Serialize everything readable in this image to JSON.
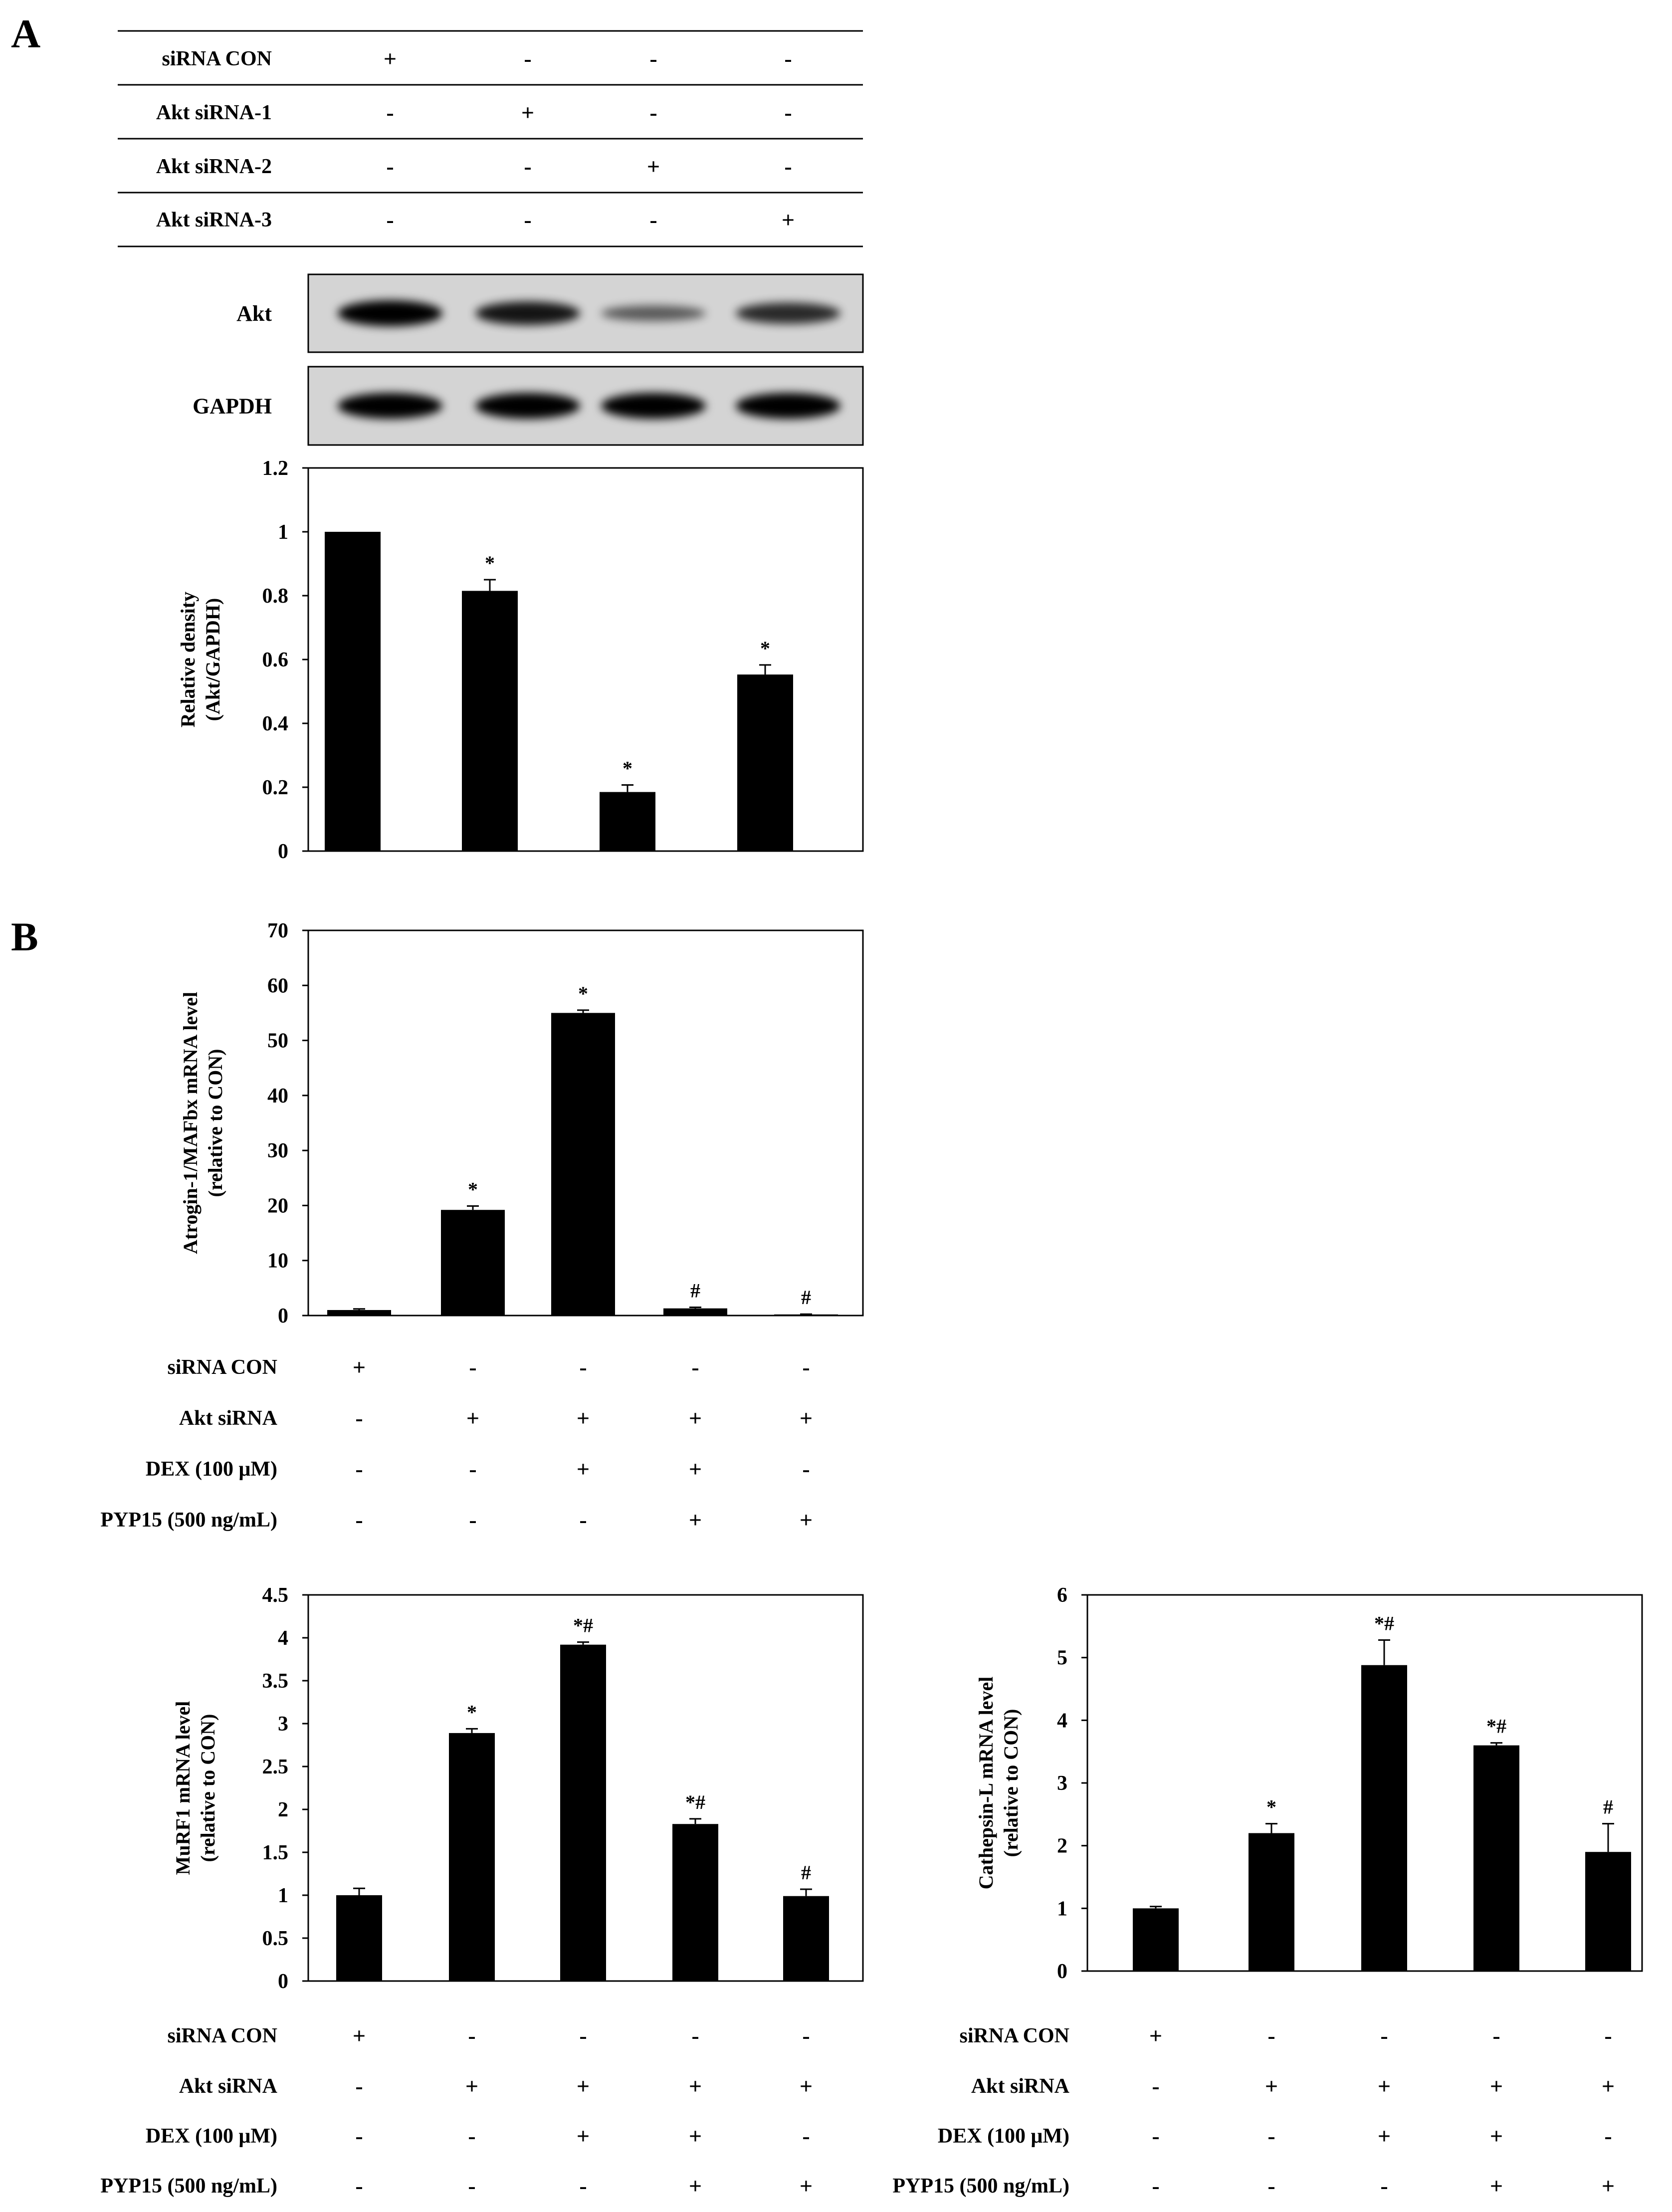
{
  "panels": [
    {
      "id": "A",
      "letter": "A"
    },
    {
      "id": "B",
      "letter": "B"
    }
  ],
  "panel_a_conditions": {
    "rows": [
      "siRNA CON",
      "Akt siRNA-1",
      "Akt siRNA-2",
      "Akt siRNA-3"
    ],
    "signs": [
      [
        "+",
        "-",
        "-",
        "-"
      ],
      [
        "-",
        "+",
        "-",
        "-"
      ],
      [
        "-",
        "-",
        "+",
        "-"
      ],
      [
        "-",
        "-",
        "-",
        "+"
      ]
    ]
  },
  "blots": [
    {
      "label": "Akt",
      "band_intensity": [
        1.0,
        0.85,
        0.35,
        0.7
      ]
    },
    {
      "label": "GAPDH",
      "band_intensity": [
        1.0,
        1.0,
        1.0,
        1.0
      ]
    }
  ],
  "panel_b_conditions": {
    "rows": [
      "siRNA CON",
      "Akt siRNA",
      "DEX (100 μM)",
      "PYP15 (500 ng/mL)"
    ],
    "signs": [
      [
        "+",
        "-",
        "-",
        "-",
        "-"
      ],
      [
        "-",
        "+",
        "+",
        "+",
        "+"
      ],
      [
        "-",
        "-",
        "+",
        "+",
        "-"
      ],
      [
        "-",
        "-",
        "-",
        "+",
        "+"
      ]
    ]
  },
  "chart_data": [
    {
      "id": "akt-density",
      "type": "bar",
      "ylabel": [
        "Relative density",
        "(Akt/GAPDH)"
      ],
      "ylim": [
        0,
        1.2
      ],
      "yticks": [
        0,
        0.2,
        0.4,
        0.6,
        0.8,
        1,
        1.2
      ],
      "ytick_labels": [
        "0",
        "0.2",
        "0.4",
        "0.6",
        "0.8",
        "1",
        "1.2"
      ],
      "values": [
        1.0,
        0.815,
        0.185,
        0.553
      ],
      "errors": [
        0,
        0.035,
        0.022,
        0.03
      ],
      "sig": [
        "",
        "*",
        "*",
        "*"
      ]
    },
    {
      "id": "atrogin",
      "type": "bar",
      "ylabel": [
        "Atrogin-1/MAFbx mRNA level",
        "(relative to CON)"
      ],
      "ylim": [
        0,
        70
      ],
      "yticks": [
        0,
        10,
        20,
        30,
        40,
        50,
        60,
        70
      ],
      "ytick_labels": [
        "0",
        "10",
        "20",
        "30",
        "40",
        "50",
        "60",
        "70"
      ],
      "values": [
        1.0,
        19.2,
        55.0,
        1.3,
        0.2
      ],
      "errors": [
        0.2,
        0.7,
        0.5,
        0.2,
        0.05
      ],
      "sig": [
        "",
        "*",
        "*",
        "#",
        "#"
      ]
    },
    {
      "id": "murf1",
      "type": "bar",
      "ylabel": [
        "MuRF1 mRNA level",
        "(relative to CON)"
      ],
      "ylim": [
        0,
        4.5
      ],
      "yticks": [
        0,
        0.5,
        1,
        1.5,
        2,
        2.5,
        3,
        3.5,
        4,
        4.5
      ],
      "ytick_labels": [
        "0",
        "0.5",
        "1",
        "1.5",
        "2",
        "2.5",
        "3",
        "3.5",
        "4",
        "4.5"
      ],
      "values": [
        1.0,
        2.89,
        3.92,
        1.83,
        0.99
      ],
      "errors": [
        0.08,
        0.05,
        0.03,
        0.06,
        0.08
      ],
      "sig": [
        "",
        "*",
        "*#",
        "*#",
        "#"
      ]
    },
    {
      "id": "cathepsin",
      "type": "bar",
      "ylabel": [
        "Cathepsin-L mRNA level",
        "(relative to CON)"
      ],
      "ylim": [
        0,
        6
      ],
      "yticks": [
        0,
        1,
        2,
        3,
        4,
        5,
        6
      ],
      "ytick_labels": [
        "0",
        "1",
        "2",
        "3",
        "4",
        "5",
        "6"
      ],
      "values": [
        1.0,
        2.2,
        4.88,
        3.6,
        1.9
      ],
      "errors": [
        0.03,
        0.15,
        0.4,
        0.04,
        0.45
      ],
      "sig": [
        "",
        "*",
        "*#",
        "*#",
        "#"
      ]
    }
  ]
}
